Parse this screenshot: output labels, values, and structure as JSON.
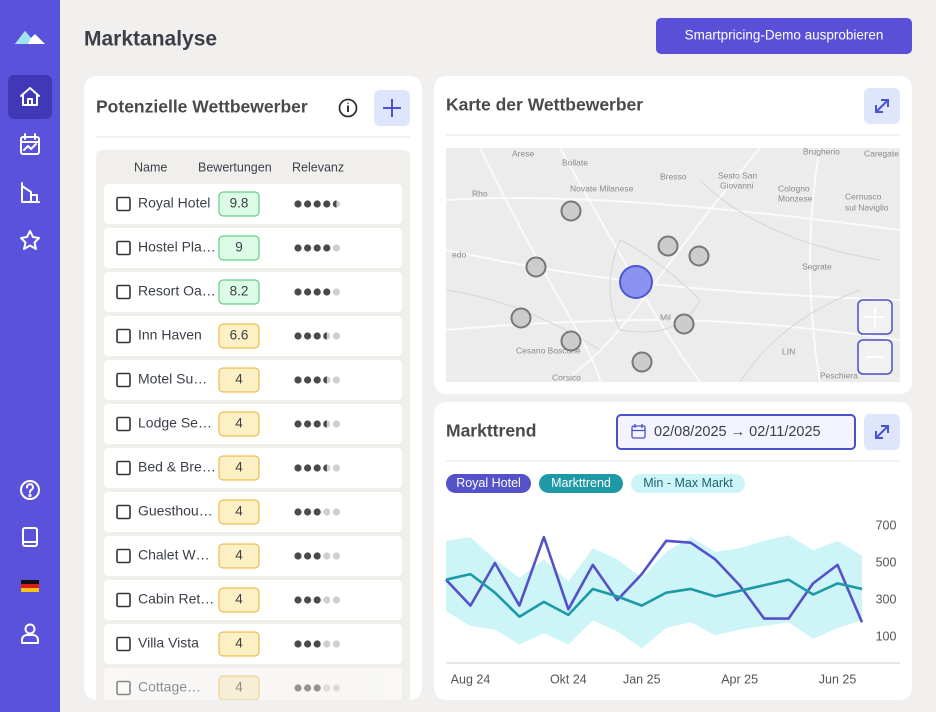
{
  "header": {
    "title": "Marktanalyse",
    "button": "Smartpricing-Demo ausprobieren"
  },
  "competitors": {
    "title": "Potenzielle Wettbewerber",
    "columns": [
      "Name",
      "Bewertungen",
      "Relevanz"
    ],
    "rows": [
      {
        "name": "Royal Hotel",
        "rating": 9.8,
        "relevance": 4.5
      },
      {
        "name": "Hostel Pla…",
        "rating": 9,
        "relevance": 4
      },
      {
        "name": "Resort Oa…",
        "rating": 8.2,
        "relevance": 4
      },
      {
        "name": "Inn Haven",
        "rating": 6.6,
        "relevance": 3.5
      },
      {
        "name": "Motel Su…",
        "rating": 4,
        "relevance": 3.5
      },
      {
        "name": "Lodge Se…",
        "rating": 4,
        "relevance": 3.5
      },
      {
        "name": "Bed & Bre…",
        "rating": 4,
        "relevance": 3.5
      },
      {
        "name": "Guesthou…",
        "rating": 4,
        "relevance": 3
      },
      {
        "name": "Chalet W…",
        "rating": 4,
        "relevance": 3
      },
      {
        "name": "Cabin Ret…",
        "rating": 4,
        "relevance": 3
      },
      {
        "name": "Villa Vista",
        "rating": 4,
        "relevance": 3
      },
      {
        "name": "Cottage…",
        "rating": 4,
        "relevance": 3
      }
    ]
  },
  "map": {
    "title": "Karte der Wettbewerber",
    "places": [
      "Arese",
      "Bollate",
      "Bresso",
      "Sesto San",
      "Giovanni",
      "Brugherio",
      "Caregate",
      "Rho",
      "Novate Milanese",
      "Cologno",
      "Monzese",
      "Cernusco",
      "sul Naviglio",
      "Segrate",
      "edo",
      "Mil",
      "Cesano Boscone",
      "Corsico",
      "LIN",
      "Peschiera"
    ]
  },
  "chart_data": {
    "type": "line",
    "title": "Markttrend",
    "date_range": "02/08/2025 → 02/11/2025",
    "categories": [
      null,
      "Aug 24",
      null,
      null,
      null,
      "Okt 24",
      null,
      null,
      "Jan 25",
      null,
      null,
      null,
      "Apr 25",
      null,
      null,
      null,
      "Jun 25",
      null
    ],
    "series": [
      {
        "name": "Royal Hotel",
        "color": "#5451c9",
        "values": [
          410,
          270,
          500,
          270,
          640,
          250,
          490,
          300,
          440,
          620,
          610,
          520,
          380,
          200,
          200,
          390,
          490,
          180
        ]
      },
      {
        "name": "Markttrend",
        "color": "#1e9aa6",
        "values": [
          410,
          440,
          340,
          210,
          290,
          220,
          360,
          320,
          270,
          340,
          360,
          320,
          350,
          380,
          410,
          330,
          390,
          360
        ]
      },
      {
        "name": "Min - Max Markt",
        "color": "#cdf5f8",
        "min": [
          240,
          160,
          140,
          60,
          120,
          60,
          190,
          130,
          40,
          150,
          180,
          110,
          140,
          160,
          180,
          90,
          150,
          190
        ],
        "max": [
          620,
          640,
          520,
          420,
          520,
          400,
          580,
          520,
          420,
          560,
          640,
          560,
          580,
          620,
          650,
          570,
          620,
          540
        ]
      }
    ],
    "ylim": [
      -40,
      780
    ],
    "yticks": [
      100,
      300,
      500,
      700
    ],
    "grid": false
  }
}
